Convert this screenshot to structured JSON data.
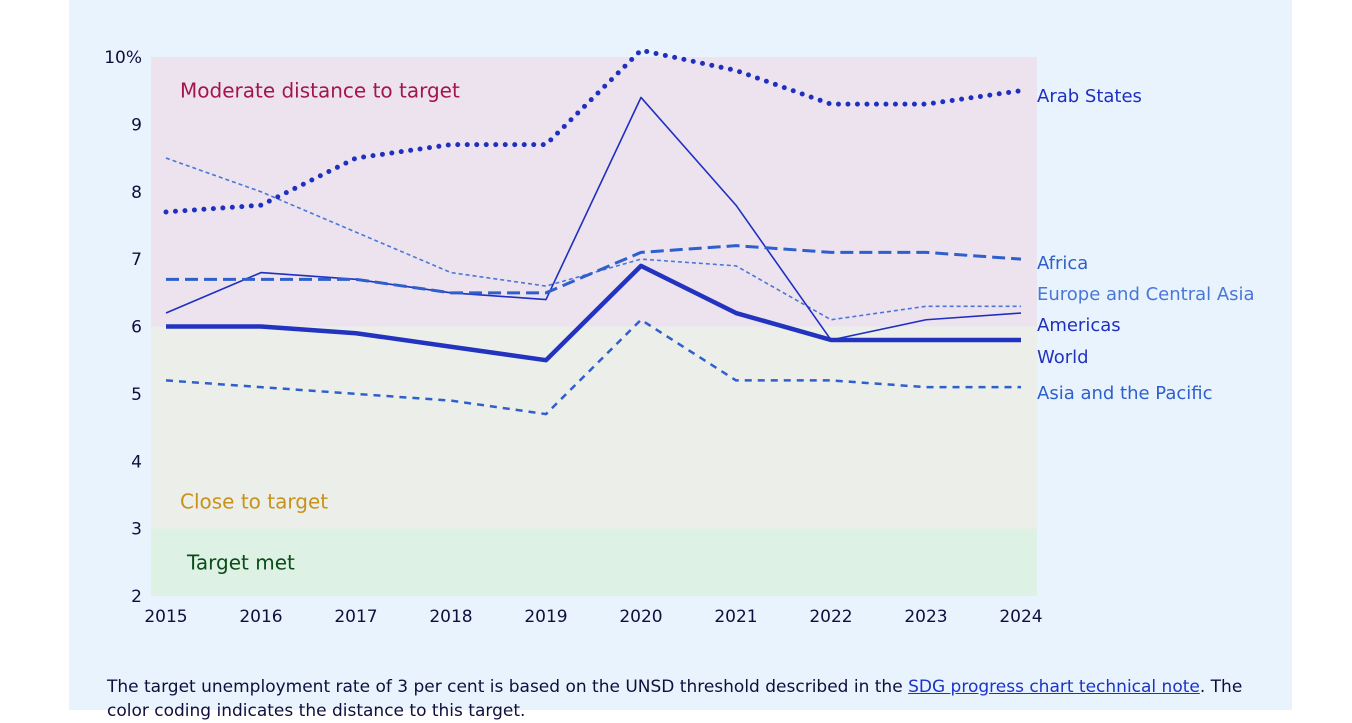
{
  "chart_data": {
    "type": "line",
    "x": [
      2015,
      2016,
      2017,
      2018,
      2019,
      2020,
      2021,
      2022,
      2023,
      2024
    ],
    "ylim": [
      2,
      10
    ],
    "y_ticks": [
      {
        "value": 2,
        "label": "2"
      },
      {
        "value": 3,
        "label": "3"
      },
      {
        "value": 4,
        "label": "4"
      },
      {
        "value": 5,
        "label": "5"
      },
      {
        "value": 6,
        "label": "6"
      },
      {
        "value": 7,
        "label": "7"
      },
      {
        "value": 8,
        "label": "8"
      },
      {
        "value": 9,
        "label": "9"
      },
      {
        "value": 10,
        "label": "10%"
      }
    ],
    "grid": false,
    "legend": "direct labels at right end of lines",
    "bands": [
      {
        "label": "Moderate distance to target",
        "from": 6,
        "to": 10,
        "fill": "#ece3ef",
        "text_color": "#a3154f"
      },
      {
        "label": "Close to target",
        "from": 3,
        "to": 6,
        "fill": "#ecefe9",
        "text_color": "#c8921a"
      },
      {
        "label": "Target met",
        "from": 2,
        "to": 3,
        "fill": "#ddf1e4",
        "text_color": "#0b4d1a"
      }
    ],
    "series": [
      {
        "name": "Arab States",
        "values": [
          7.7,
          7.8,
          8.5,
          8.7,
          8.7,
          10.1,
          9.8,
          9.3,
          9.3,
          9.5
        ],
        "color": "#1f2fbf",
        "style": "dotted-bold"
      },
      {
        "name": "Africa",
        "values": [
          6.7,
          6.7,
          6.7,
          6.5,
          6.5,
          7.1,
          7.2,
          7.1,
          7.1,
          7.0
        ],
        "color": "#2e5fcc",
        "style": "dashed"
      },
      {
        "name": "Europe and Central Asia",
        "values": [
          8.5,
          8.0,
          7.4,
          6.8,
          6.6,
          7.0,
          6.9,
          6.1,
          6.3,
          6.3
        ],
        "color": "#4a77d6",
        "style": "dashed-thin"
      },
      {
        "name": "Americas",
        "values": [
          6.2,
          6.8,
          6.7,
          6.5,
          6.4,
          9.4,
          7.8,
          5.8,
          6.1,
          6.2
        ],
        "color": "#1f2fbf",
        "style": "solid-thin"
      },
      {
        "name": "World",
        "values": [
          6.0,
          6.0,
          5.9,
          5.7,
          5.5,
          6.9,
          6.2,
          5.8,
          5.8,
          5.8
        ],
        "color": "#2233c0",
        "style": "solid-bold"
      },
      {
        "name": "Asia and the Pacific",
        "values": [
          5.2,
          5.1,
          5.0,
          4.9,
          4.7,
          6.1,
          5.2,
          5.2,
          5.1,
          5.1
        ],
        "color": "#2e5fcc",
        "style": "short-dash"
      }
    ]
  },
  "note": {
    "text_before": "The target unemployment rate of 3 per cent is based on the UNSD threshold described in the ",
    "link_text": "SDG progress chart technical note",
    "text_after": ". The color coding indicates the distance to this target."
  }
}
